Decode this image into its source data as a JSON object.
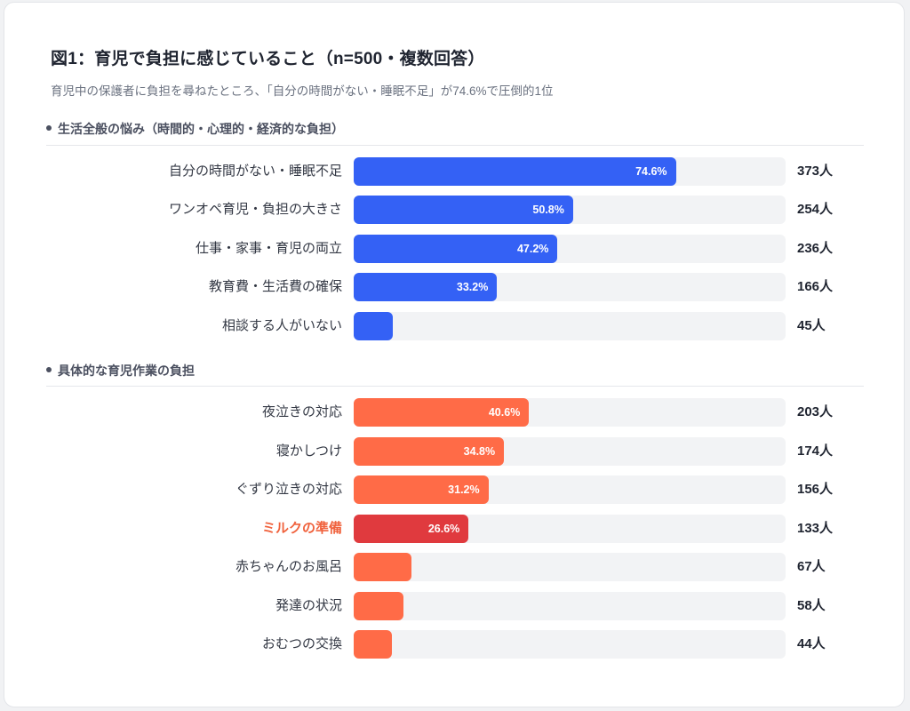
{
  "header": {
    "title": "図1：育児で負担に感じていること（n=500・複数回答）",
    "subtitle": "育児中の保護者に負担を尋ねたところ、「自分の時間がない・睡眠不足」が74.6%で圧倒的1位"
  },
  "colors": {
    "blue": "#3461f5",
    "orange": "#ff6b47",
    "red_highlight": "#e03a3e",
    "track": "#f2f3f5",
    "highlight_label": "#f0623d"
  },
  "sections": [
    {
      "label": "生活全般の悩み（時間的・心理的・経済的な負担）",
      "items": [
        {
          "label": "自分の時間がない・睡眠不足",
          "percent": 74.6,
          "pct_label": "74.6%",
          "count": "373人"
        },
        {
          "label": "ワンオペ育児・負担の大きさ",
          "percent": 50.8,
          "pct_label": "50.8%",
          "count": "254人"
        },
        {
          "label": "仕事・家事・育児の両立",
          "percent": 47.2,
          "pct_label": "47.2%",
          "count": "236人"
        },
        {
          "label": "教育費・生活費の確保",
          "percent": 33.2,
          "pct_label": "33.2%",
          "count": "166人"
        },
        {
          "label": "相談する人がいない",
          "percent": 9.0,
          "pct_label": "",
          "count": "45人"
        }
      ]
    },
    {
      "label": "具体的な育児作業の負担",
      "items": [
        {
          "label": "夜泣きの対応",
          "percent": 40.6,
          "pct_label": "40.6%",
          "count": "203人"
        },
        {
          "label": "寝かしつけ",
          "percent": 34.8,
          "pct_label": "34.8%",
          "count": "174人"
        },
        {
          "label": "ぐずり泣きの対応",
          "percent": 31.2,
          "pct_label": "31.2%",
          "count": "156人"
        },
        {
          "label": "ミルクの準備",
          "percent": 26.6,
          "pct_label": "26.6%",
          "count": "133人",
          "highlight": true
        },
        {
          "label": "赤ちゃんのお風呂",
          "percent": 13.4,
          "pct_label": "",
          "count": "67人"
        },
        {
          "label": "発達の状況",
          "percent": 11.6,
          "pct_label": "",
          "count": "58人"
        },
        {
          "label": "おむつの交換",
          "percent": 8.8,
          "pct_label": "",
          "count": "44人"
        }
      ]
    }
  ],
  "chart_data": {
    "type": "bar",
    "orientation": "horizontal",
    "title": "図1：育児で負担に感じていること（n=500・複数回答）",
    "subtitle": "育児中の保護者に負担を尋ねたところ、「自分の時間がない・睡眠不足」が74.6%で圧倒的1位",
    "xlabel": "",
    "ylabel": "",
    "xlim": [
      0,
      100
    ],
    "grid": false,
    "legend": null,
    "groups": [
      {
        "name": "生活全般の悩み（時間的・心理的・経済的な負担）",
        "color": "#3461f5",
        "categories": [
          "自分の時間がない・睡眠不足",
          "ワンオペ育児・負担の大きさ",
          "仕事・家事・育児の両立",
          "教育費・生活費の確保",
          "相談する人がいない"
        ],
        "percent": [
          74.6,
          50.8,
          47.2,
          33.2,
          9.0
        ],
        "count": [
          373,
          254,
          236,
          166,
          45
        ]
      },
      {
        "name": "具体的な育児作業の負担",
        "color": "#ff6b47",
        "highlight": {
          "category": "ミルクの準備",
          "color": "#e03a3e"
        },
        "categories": [
          "夜泣きの対応",
          "寝かしつけ",
          "ぐずり泣きの対応",
          "ミルクの準備",
          "赤ちゃんのお風呂",
          "発達の状況",
          "おむつの交換"
        ],
        "percent": [
          40.6,
          34.8,
          31.2,
          26.6,
          13.4,
          11.6,
          8.8
        ],
        "count": [
          203,
          174,
          156,
          133,
          67,
          58,
          44
        ]
      }
    ],
    "unit_count": "人",
    "n": 500
  }
}
